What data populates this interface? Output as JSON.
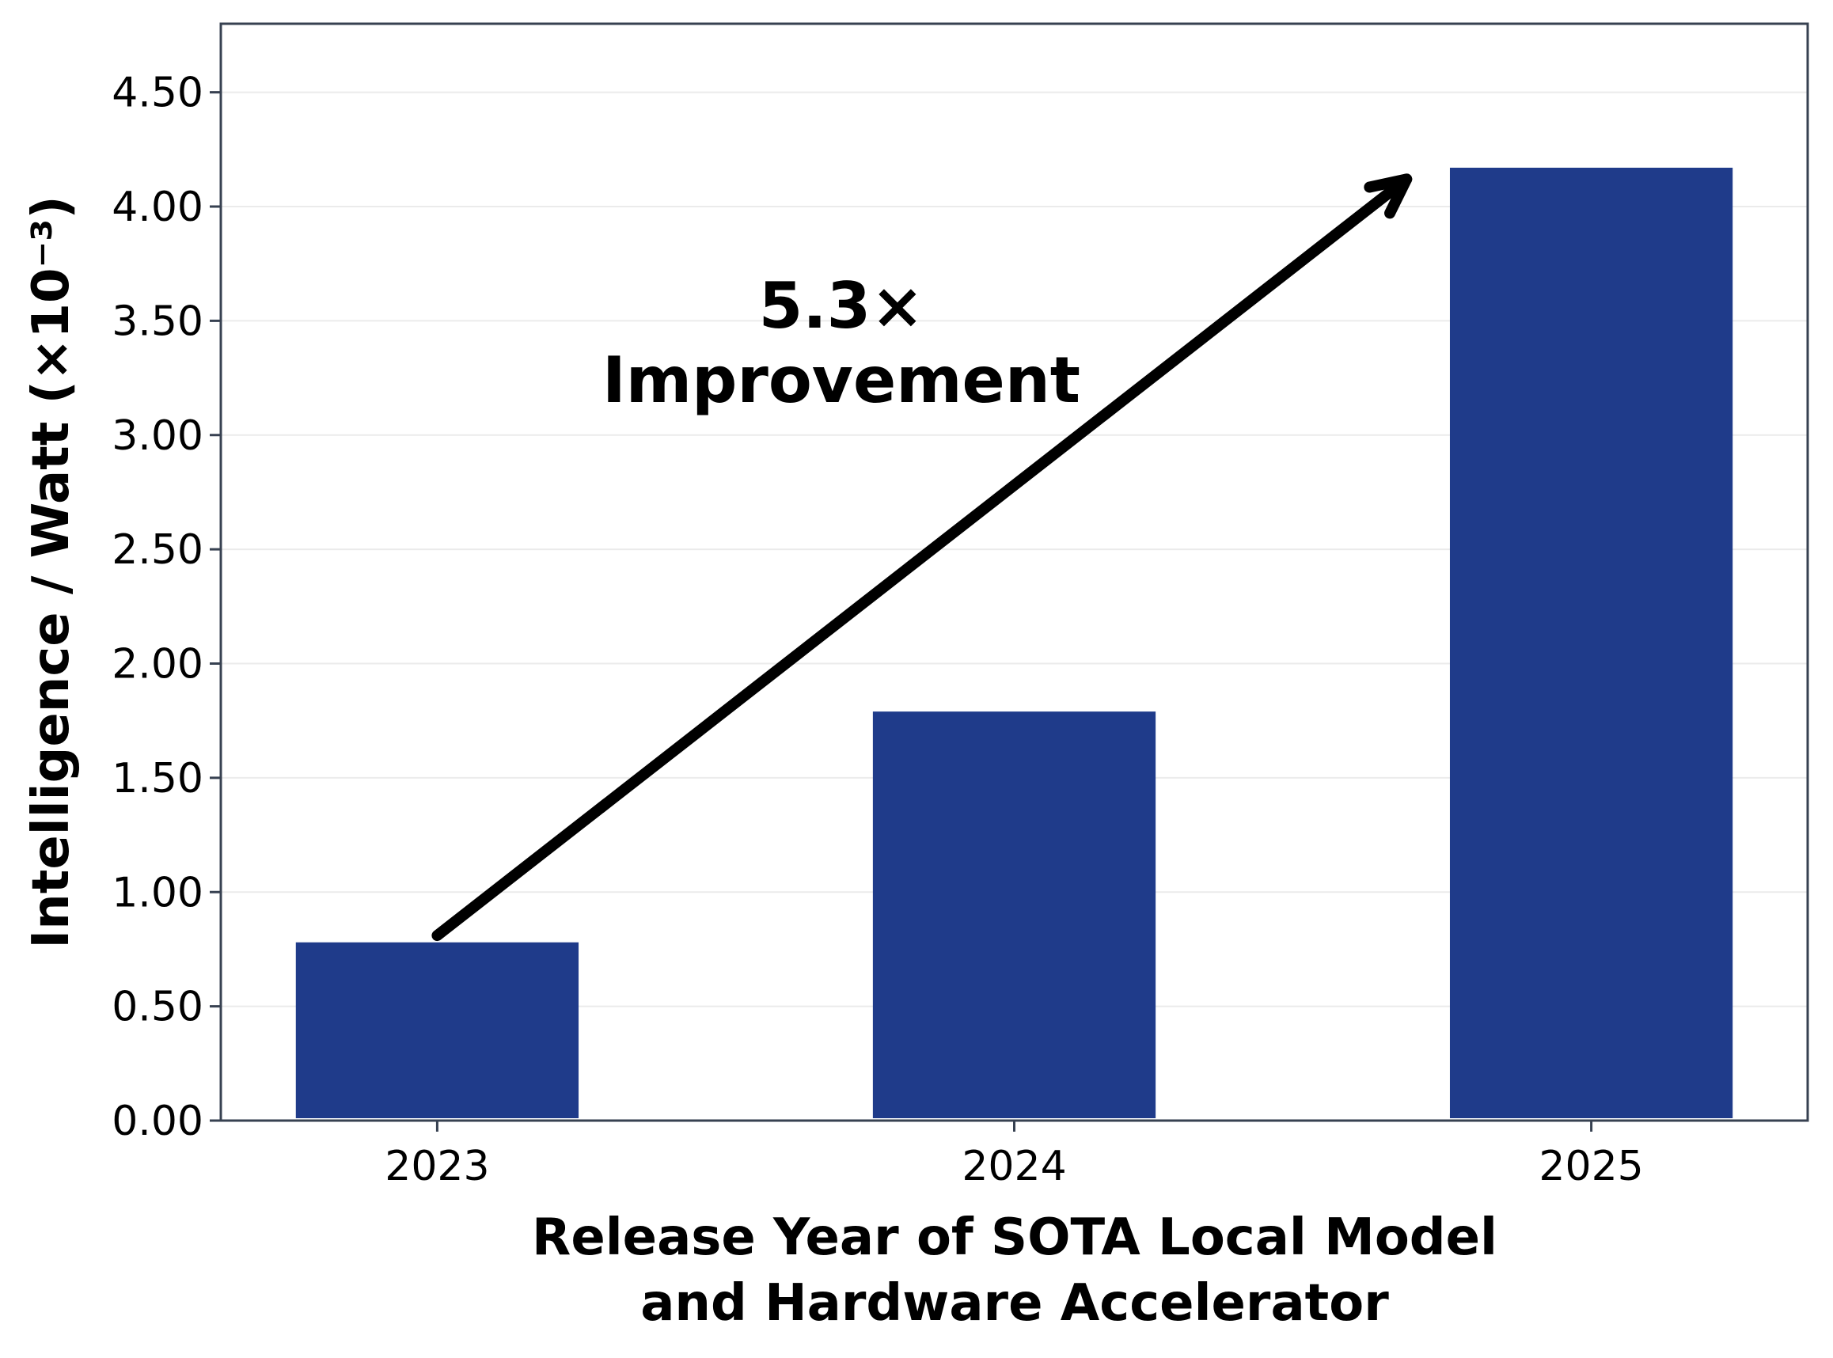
{
  "chart_data": {
    "type": "bar",
    "categories": [
      "2023",
      "2024",
      "2025"
    ],
    "values": [
      0.78,
      1.79,
      4.17
    ],
    "title": "",
    "xlabel": [
      "Release Year of SOTA Local Model",
      "and Hardware Accelerator"
    ],
    "ylabel": "Intelligence / Watt (×10⁻³)",
    "ylim": [
      0,
      4.8
    ],
    "yticks": [
      0,
      0.5,
      1.0,
      1.5,
      2.0,
      2.5,
      3.0,
      3.5,
      4.0,
      4.5
    ],
    "ytick_labels": [
      "0.00",
      "0.50",
      "1.00",
      "1.50",
      "2.00",
      "2.50",
      "3.00",
      "3.50",
      "4.00",
      "4.50"
    ],
    "grid": "horizontal",
    "bar_color": "#1f3b8a",
    "frame_color": "#374151",
    "grid_color": "#ebebeb",
    "annotation": {
      "text": [
        "5.3×",
        "Improvement"
      ],
      "arrow_from": {
        "category_index": 0,
        "y": 0.81
      },
      "arrow_to": {
        "category_index": 1.68,
        "y": 4.12
      }
    }
  }
}
